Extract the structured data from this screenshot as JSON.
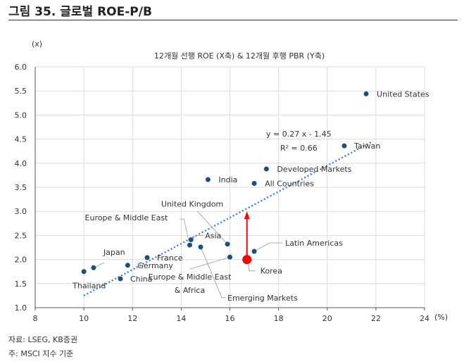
{
  "figure_title": "그림 35. 글로벌 ROE-P/B",
  "source": "자료: LSEG, KB증권",
  "note": "주: MSCI 지수 기준",
  "chart_data": {
    "type": "scatter",
    "title": "12개월 선행 ROE (X축) & 12개월 후행 PBR (Y축)",
    "xunit": "(%)",
    "yunit": "(x)",
    "xlim": [
      8,
      24
    ],
    "ylim": [
      1.0,
      6.0
    ],
    "xticks": [
      "8",
      "10",
      "12",
      "14",
      "16",
      "18",
      "20",
      "22",
      "24"
    ],
    "yticks": [
      "1.0",
      "1.5",
      "2.0",
      "2.5",
      "3.0",
      "3.5",
      "4.0",
      "4.5",
      "5.0",
      "5.5",
      "6.0"
    ],
    "grid": true,
    "points": [
      {
        "label": "United States",
        "x": 21.6,
        "y": 5.44
      },
      {
        "label": "Taiwan",
        "x": 20.7,
        "y": 4.36
      },
      {
        "label": "Developed Markets",
        "x": 17.5,
        "y": 3.88
      },
      {
        "label": "India",
        "x": 15.1,
        "y": 3.66
      },
      {
        "label": "All Countries",
        "x": 17.0,
        "y": 3.58
      },
      {
        "label": "Latin Americas",
        "x": 17.0,
        "y": 2.17
      },
      {
        "label": "United Kingdom",
        "x": 15.9,
        "y": 2.32
      },
      {
        "label": "Asia",
        "x": 14.4,
        "y": 2.41
      },
      {
        "label": "Europe & Middle East",
        "x": 14.35,
        "y": 2.3
      },
      {
        "label": "Emerging Markets",
        "x": 14.8,
        "y": 2.26
      },
      {
        "label": "Europe & Middle East & Africa",
        "x": 16.0,
        "y": 2.05
      },
      {
        "label": "France",
        "x": 12.6,
        "y": 2.04
      },
      {
        "label": "Germany",
        "x": 11.8,
        "y": 1.88
      },
      {
        "label": "Japan",
        "x": 10.4,
        "y": 1.83
      },
      {
        "label": "Thailand",
        "x": 10.0,
        "y": 1.75
      },
      {
        "label": "China",
        "x": 11.5,
        "y": 1.6
      }
    ],
    "highlight": {
      "label": "Korea",
      "x": 16.7,
      "y": 2.0,
      "target_y": 3.0,
      "color": "#ff0000"
    },
    "trendline": {
      "equation": "y = 0.27 x - 1.45",
      "r2": "R² = 0.66",
      "slope": 0.27,
      "intercept": -1.45,
      "xrange": [
        10,
        21.8
      ],
      "color": "#4a7fc1"
    },
    "point_color": "#1f4e79"
  }
}
